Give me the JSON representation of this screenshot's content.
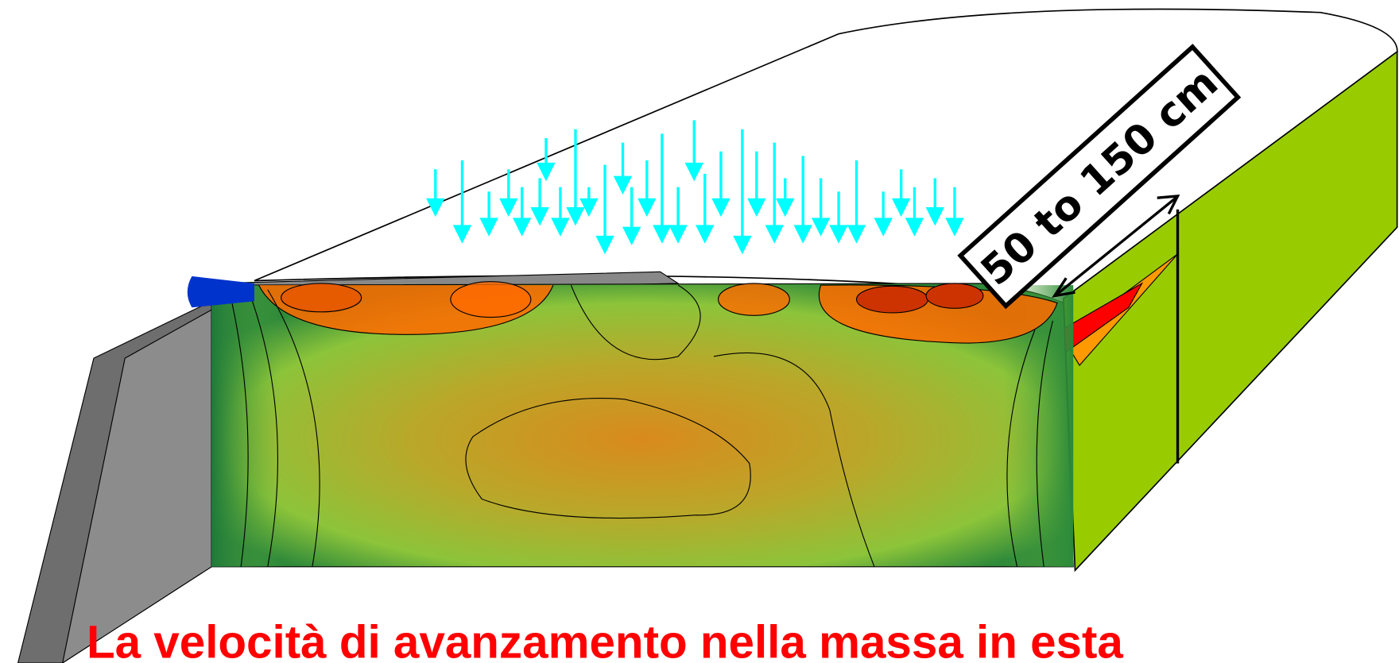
{
  "label": "50 to 150 cm",
  "caption": "La velocità di avanzamento nella massa in esta"
}
